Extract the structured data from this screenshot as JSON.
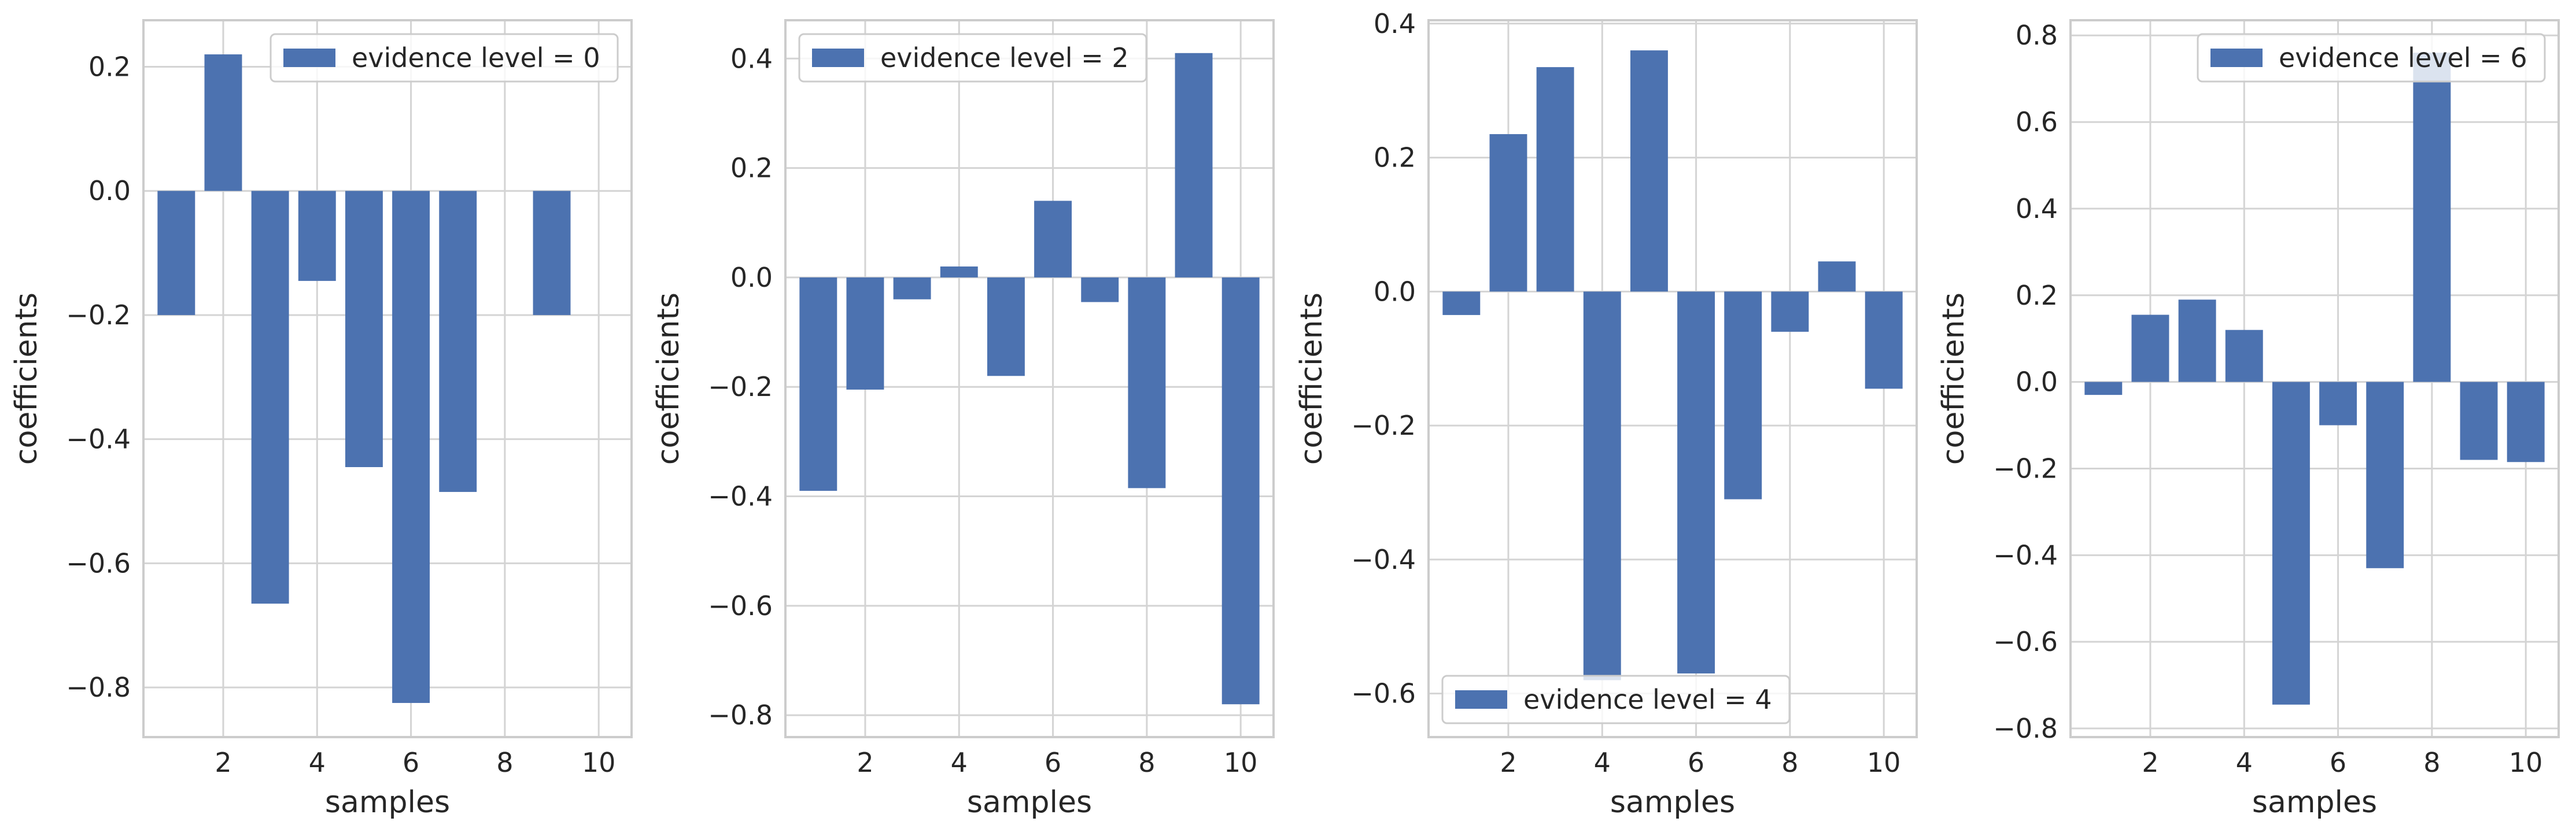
{
  "colors": {
    "bar": "#4c72b0",
    "grid": "#d4d4d4",
    "frame": "#cccccc",
    "text": "#262626"
  },
  "chart_data": [
    {
      "type": "bar",
      "xlabel": "samples",
      "ylabel": "coefficients",
      "legend": {
        "label": "evidence level = 0",
        "placement": "top-right"
      },
      "grid": true,
      "x": [
        1,
        2,
        3,
        4,
        5,
        6,
        7,
        8,
        9,
        10
      ],
      "values": [
        -0.2,
        0.22,
        -0.665,
        -0.145,
        -0.445,
        -0.825,
        -0.485,
        0.0,
        -0.2,
        0.0
      ],
      "xticks": [
        2,
        4,
        6,
        8,
        10
      ],
      "xtick_labels": [
        "2",
        "4",
        "6",
        "8",
        "10"
      ],
      "yticks": [
        -0.8,
        -0.6,
        -0.4,
        -0.2,
        0.0,
        0.2
      ],
      "ytick_labels": [
        "−0.8",
        "−0.6",
        "−0.4",
        "−0.2",
        "0.0",
        "0.2"
      ],
      "xlim": [
        0.3,
        10.7
      ],
      "ylim": [
        -0.88,
        0.275
      ]
    },
    {
      "type": "bar",
      "xlabel": "samples",
      "ylabel": "coefficients",
      "legend": {
        "label": "evidence level = 2",
        "placement": "top-left"
      },
      "grid": true,
      "x": [
        1,
        2,
        3,
        4,
        5,
        6,
        7,
        8,
        9,
        10
      ],
      "values": [
        -0.39,
        -0.205,
        -0.04,
        0.02,
        -0.18,
        0.14,
        -0.045,
        -0.385,
        0.41,
        -0.78
      ],
      "xticks": [
        2,
        4,
        6,
        8,
        10
      ],
      "xtick_labels": [
        "2",
        "4",
        "6",
        "8",
        "10"
      ],
      "yticks": [
        -0.8,
        -0.6,
        -0.4,
        -0.2,
        0.0,
        0.2,
        0.4
      ],
      "ytick_labels": [
        "−0.8",
        "−0.6",
        "−0.4",
        "−0.2",
        "0.0",
        "0.2",
        "0.4"
      ],
      "xlim": [
        0.3,
        10.7
      ],
      "ylim": [
        -0.84,
        0.47
      ]
    },
    {
      "type": "bar",
      "xlabel": "samples",
      "ylabel": "coefficients",
      "legend": {
        "label": "evidence level = 4",
        "placement": "lower-left"
      },
      "grid": true,
      "x": [
        1,
        2,
        3,
        4,
        5,
        6,
        7,
        8,
        9,
        10
      ],
      "values": [
        -0.035,
        0.235,
        0.335,
        -0.58,
        0.36,
        -0.57,
        -0.31,
        -0.06,
        0.045,
        -0.145
      ],
      "xticks": [
        2,
        4,
        6,
        8,
        10
      ],
      "xtick_labels": [
        "2",
        "4",
        "6",
        "8",
        "10"
      ],
      "yticks": [
        -0.6,
        -0.4,
        -0.2,
        0.0,
        0.2,
        0.4
      ],
      "ytick_labels": [
        "−0.6",
        "−0.4",
        "−0.2",
        "0.0",
        "0.2",
        "0.4"
      ],
      "xlim": [
        0.3,
        10.7
      ],
      "ylim": [
        -0.665,
        0.405
      ]
    },
    {
      "type": "bar",
      "xlabel": "samples",
      "ylabel": "coefficients",
      "legend": {
        "label": "evidence level = 6",
        "placement": "top-right"
      },
      "grid": true,
      "x": [
        1,
        2,
        3,
        4,
        5,
        6,
        7,
        8,
        9,
        10
      ],
      "values": [
        -0.03,
        0.155,
        0.19,
        0.12,
        -0.745,
        -0.1,
        -0.43,
        0.76,
        -0.18,
        -0.185
      ],
      "xticks": [
        2,
        4,
        6,
        8,
        10
      ],
      "xtick_labels": [
        "2",
        "4",
        "6",
        "8",
        "10"
      ],
      "yticks": [
        -0.8,
        -0.6,
        -0.4,
        -0.2,
        0.0,
        0.2,
        0.4,
        0.6,
        0.8
      ],
      "ytick_labels": [
        "−0.8",
        "−0.6",
        "−0.4",
        "−0.2",
        "0.0",
        "0.2",
        "0.4",
        "0.6",
        "0.8"
      ],
      "xlim": [
        0.3,
        10.7
      ],
      "ylim": [
        -0.82,
        0.835
      ]
    }
  ]
}
